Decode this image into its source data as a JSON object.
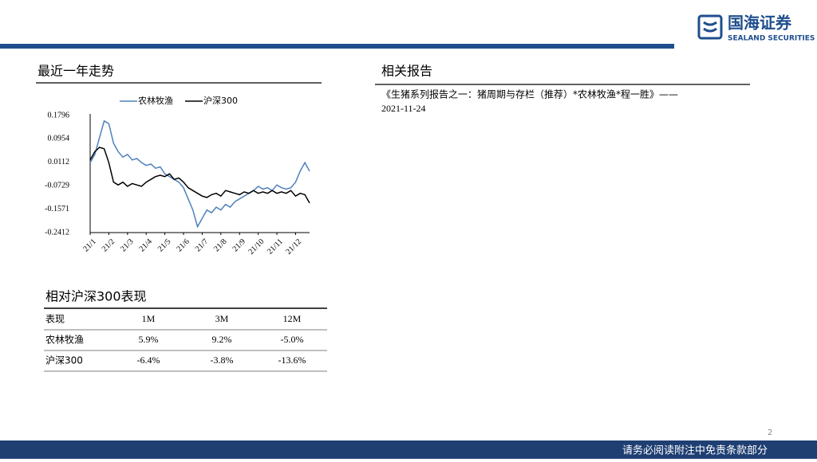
{
  "header": {
    "logo_cn": "国海证券",
    "logo_en": "SEALAND SECURITIES"
  },
  "trend_title": "最近一年走势",
  "reports_title": "相关报告",
  "reports": [
    {
      "text": "《生猪系列报告之一：猪周期与存栏（推荐）*农林牧渔*程一胜》——",
      "date": "2021-11-24"
    }
  ],
  "chart_data": {
    "type": "line",
    "categories": [
      "21/1",
      null,
      null,
      null,
      "21/2",
      null,
      null,
      null,
      "21/3",
      null,
      null,
      null,
      "21/4",
      null,
      null,
      null,
      "21/5",
      null,
      null,
      null,
      "21/6",
      null,
      null,
      null,
      "21/7",
      null,
      null,
      null,
      "21/8",
      null,
      null,
      null,
      "21/9",
      null,
      null,
      null,
      "21/10",
      null,
      null,
      null,
      "21/11",
      null,
      null,
      null,
      "21/12",
      null,
      null,
      null
    ],
    "series": [
      {
        "name": "农林牧渔",
        "color": "#4f81bd",
        "values": [
          0.01,
          0.04,
          0.1,
          0.16,
          0.15,
          0.08,
          0.05,
          0.03,
          0.04,
          0.02,
          0.025,
          0.01,
          0.0,
          0.005,
          -0.01,
          -0.005,
          -0.03,
          -0.04,
          -0.05,
          -0.06,
          -0.08,
          -0.12,
          -0.16,
          -0.22,
          -0.19,
          -0.16,
          -0.17,
          -0.15,
          -0.16,
          -0.14,
          -0.15,
          -0.13,
          -0.12,
          -0.11,
          -0.1,
          -0.09,
          -0.075,
          -0.085,
          -0.08,
          -0.09,
          -0.07,
          -0.08,
          -0.085,
          -0.08,
          -0.06,
          -0.02,
          0.01,
          -0.02
        ]
      },
      {
        "name": "沪深300",
        "color": "#000000",
        "values": [
          0.02,
          0.05,
          0.065,
          0.06,
          0.01,
          -0.06,
          -0.07,
          -0.06,
          -0.075,
          -0.065,
          -0.07,
          -0.075,
          -0.06,
          -0.05,
          -0.04,
          -0.035,
          -0.04,
          -0.03,
          -0.05,
          -0.045,
          -0.06,
          -0.08,
          -0.09,
          -0.1,
          -0.11,
          -0.115,
          -0.105,
          -0.1,
          -0.11,
          -0.09,
          -0.095,
          -0.1,
          -0.105,
          -0.095,
          -0.1,
          -0.09,
          -0.1,
          -0.095,
          -0.1,
          -0.09,
          -0.1,
          -0.095,
          -0.1,
          -0.09,
          -0.11,
          -0.1,
          -0.105,
          -0.135
        ]
      }
    ],
    "ylim": [
      -0.2412,
      0.1796
    ],
    "yticks": [
      0.1796,
      0.0954,
      0.0112,
      -0.0729,
      -0.1571,
      -0.2412
    ],
    "grid": false
  },
  "table": {
    "title": "相对沪深300表现",
    "header": [
      "表现",
      "1M",
      "3M",
      "12M"
    ],
    "rows": [
      [
        "农林牧渔",
        "5.9%",
        "9.2%",
        "-5.0%"
      ],
      [
        "沪深300",
        "-6.4%",
        "-3.8%",
        "-13.6%"
      ]
    ]
  },
  "footer": {
    "page": "2",
    "disclaimer": "请务必阅读附注中免责条款部分"
  }
}
